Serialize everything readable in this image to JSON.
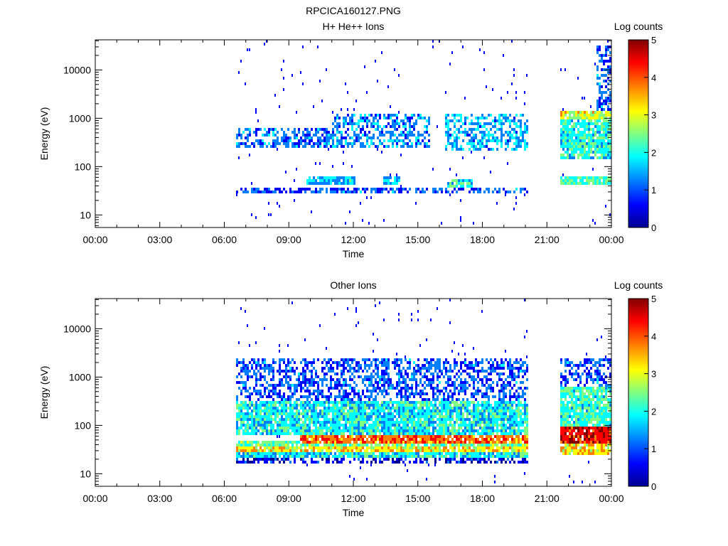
{
  "figure_title": "RPCICA160127.PNG",
  "colors": {
    "colormap": [
      "#00008f",
      "#0000ff",
      "#0080ff",
      "#00ffff",
      "#80ff80",
      "#ffff00",
      "#ff8000",
      "#ff0000",
      "#800000"
    ],
    "background": "#ffffff",
    "axis": "#000000"
  },
  "chart_data": [
    {
      "type": "heatmap",
      "title": "H+ He++ Ions",
      "xlabel": "Time",
      "ylabel": "Energy (eV)",
      "xlim": [
        "00:00",
        "24:00"
      ],
      "ylim": [
        5.5,
        42000
      ],
      "yscale": "log",
      "x_ticks": [
        "00:00",
        "03:00",
        "06:00",
        "09:00",
        "12:00",
        "15:00",
        "18:00",
        "21:00",
        "00:00"
      ],
      "y_ticks": [
        {
          "value": 10,
          "label": "10"
        },
        {
          "value": 100,
          "label": "100"
        },
        {
          "value": 1000,
          "label": "1000"
        },
        {
          "value": 10000,
          "label": "10000"
        }
      ],
      "colorbar": {
        "label": "Log counts",
        "range": [
          0,
          5
        ],
        "ticks": [
          "0",
          "1",
          "2",
          "3",
          "4",
          "5"
        ]
      },
      "data_intervals_hours": [
        [
          6.5,
          20.1
        ],
        [
          21.6,
          23.95
        ]
      ],
      "bands": [
        {
          "hours": [
            6.5,
            20.1
          ],
          "energy_eV": [
            28,
            38
          ],
          "log_counts": 1.0
        },
        {
          "hours": [
            9.8,
            12.0
          ],
          "energy_eV": [
            40,
            60
          ],
          "log_counts": 1.6
        },
        {
          "hours": [
            13.3,
            14.1
          ],
          "energy_eV": [
            40,
            60
          ],
          "log_counts": 1.6
        },
        {
          "hours": [
            16.3,
            17.5
          ],
          "energy_eV": [
            38,
            55
          ],
          "log_counts": 1.8
        },
        {
          "hours": [
            6.5,
            8.5
          ],
          "energy_eV": [
            250,
            650
          ],
          "log_counts": 1.2
        },
        {
          "hours": [
            8.5,
            11.0
          ],
          "energy_eV": [
            250,
            600
          ],
          "log_counts": 1.1
        },
        {
          "hours": [
            11.0,
            15.5
          ],
          "energy_eV": [
            250,
            1200
          ],
          "log_counts": 1.3
        },
        {
          "hours": [
            16.2,
            20.1
          ],
          "energy_eV": [
            200,
            1200
          ],
          "log_counts": 1.5
        },
        {
          "hours": [
            21.6,
            23.95
          ],
          "energy_eV": [
            40,
            65
          ],
          "log_counts": 2.3
        },
        {
          "hours": [
            21.6,
            23.95
          ],
          "energy_eV": [
            150,
            1400
          ],
          "log_counts": 2.0
        },
        {
          "hours": [
            21.6,
            23.95
          ],
          "energy_eV": [
            1000,
            1400
          ],
          "log_counts": 2.9
        },
        {
          "hours": [
            23.3,
            23.95
          ],
          "energy_eV": [
            1500,
            30000
          ],
          "log_counts": 1.0
        }
      ]
    },
    {
      "type": "heatmap",
      "title": "Other Ions",
      "xlabel": "Time",
      "ylabel": "Energy (eV)",
      "xlim": [
        "00:00",
        "24:00"
      ],
      "ylim": [
        5.5,
        42000
      ],
      "yscale": "log",
      "x_ticks": [
        "00:00",
        "03:00",
        "06:00",
        "09:00",
        "12:00",
        "15:00",
        "18:00",
        "21:00",
        "00:00"
      ],
      "y_ticks": [
        {
          "value": 10,
          "label": "10"
        },
        {
          "value": 100,
          "label": "100"
        },
        {
          "value": 1000,
          "label": "1000"
        },
        {
          "value": 10000,
          "label": "10000"
        }
      ],
      "colorbar": {
        "label": "Log counts",
        "range": [
          0,
          5
        ],
        "ticks": [
          "0",
          "1",
          "2",
          "3",
          "4",
          "5"
        ]
      },
      "data_intervals_hours": [
        [
          6.5,
          20.1
        ],
        [
          21.6,
          23.95
        ]
      ],
      "bands": [
        {
          "hours": [
            6.5,
            20.1
          ],
          "energy_eV": [
            16,
            22
          ],
          "log_counts": 0.5
        },
        {
          "hours": [
            6.5,
            20.1
          ],
          "energy_eV": [
            22,
            28
          ],
          "log_counts": 1.8
        },
        {
          "hours": [
            6.5,
            20.1
          ],
          "energy_eV": [
            28,
            38
          ],
          "log_counts": 3.2
        },
        {
          "hours": [
            6.5,
            20.1
          ],
          "energy_eV": [
            38,
            46
          ],
          "log_counts": 2.4
        },
        {
          "hours": [
            9.5,
            20.1
          ],
          "energy_eV": [
            42,
            60
          ],
          "log_counts": 3.9
        },
        {
          "hours": [
            6.5,
            20.1
          ],
          "energy_eV": [
            60,
            300
          ],
          "log_counts": 1.9
        },
        {
          "hours": [
            6.5,
            20.1
          ],
          "energy_eV": [
            300,
            2500
          ],
          "log_counts": 1.0
        },
        {
          "hours": [
            21.6,
            23.95
          ],
          "energy_eV": [
            25,
            40
          ],
          "log_counts": 3.3
        },
        {
          "hours": [
            21.6,
            23.95
          ],
          "energy_eV": [
            40,
            100
          ],
          "log_counts": 4.5
        },
        {
          "hours": [
            21.6,
            23.95
          ],
          "energy_eV": [
            100,
            600
          ],
          "log_counts": 2.1
        },
        {
          "hours": [
            21.6,
            23.95
          ],
          "energy_eV": [
            600,
            2500
          ],
          "log_counts": 1.0
        }
      ]
    }
  ]
}
